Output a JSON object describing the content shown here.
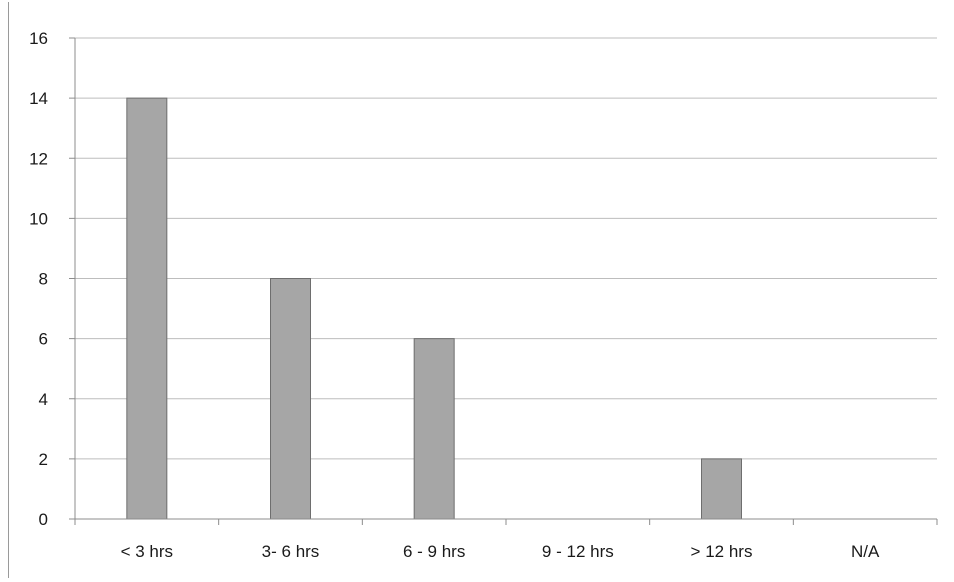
{
  "chart_data": {
    "type": "bar",
    "title": "",
    "xlabel": "",
    "ylabel": "",
    "categories": [
      "< 3 hrs",
      "3- 6 hrs",
      "6 - 9 hrs",
      "9 - 12 hrs",
      "> 12 hrs",
      "N/A"
    ],
    "values": [
      14,
      8,
      6,
      0,
      2,
      0
    ],
    "ylim": [
      0,
      16
    ],
    "yticks": [
      0,
      2,
      4,
      6,
      8,
      10,
      12,
      14,
      16
    ],
    "grid": true,
    "legend": "none",
    "colors": {
      "bar_fill": "#a6a6a6",
      "bar_edge": "#6e6e6e",
      "gridline": "#bdbdbd"
    }
  }
}
